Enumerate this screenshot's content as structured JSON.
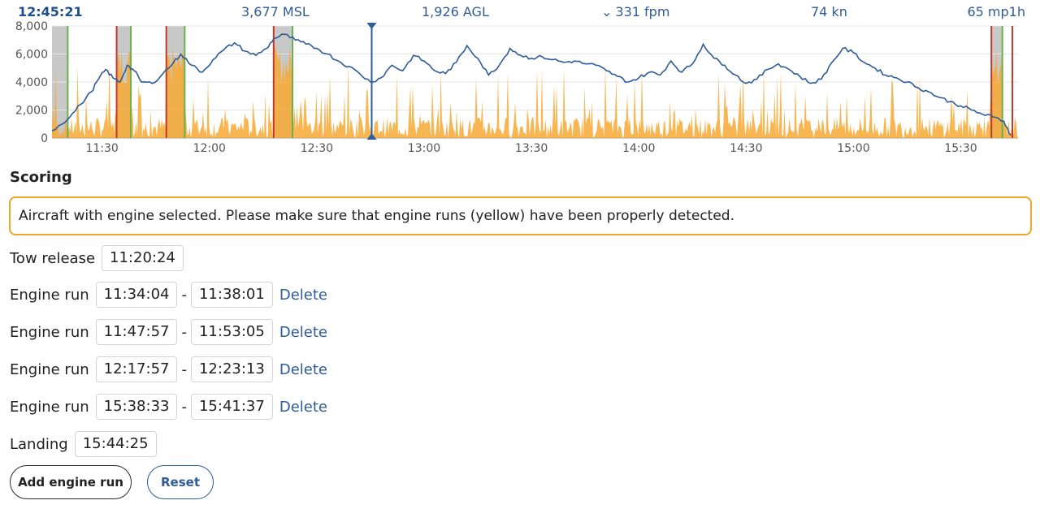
{
  "header": {
    "time": "12:45:21",
    "msl": "3,677 MSL",
    "agl": "1,926 AGL",
    "vario": "331 fpm",
    "vario_icon": "chevron-down-icon",
    "speed": "74 kn",
    "ld": "65 mp1h"
  },
  "chart_data": {
    "type": "area",
    "y_ticks": [
      "8,000",
      "6,000",
      "4,000",
      "2,000",
      "0"
    ],
    "x_ticks": [
      "11:30",
      "12:00",
      "12:30",
      "13:00",
      "13:30",
      "14:00",
      "14:30",
      "15:00",
      "15:30"
    ],
    "ylim": [
      0,
      8000
    ],
    "xlim": [
      "11:16",
      "15:46"
    ],
    "cursor_time": "12:45:21",
    "colors": {
      "altitude": "#2e5b9a",
      "engine": "#f7a935",
      "grey": "#c8c8c8",
      "green": "#6ab04c",
      "red": "#c0392b"
    },
    "altitude": {
      "x": [
        "11:16",
        "11:18",
        "11:21",
        "11:24",
        "11:27",
        "11:29",
        "11:31",
        "11:33",
        "11:35",
        "11:37",
        "11:39",
        "11:41",
        "11:44",
        "11:47",
        "11:50",
        "11:52",
        "11:55",
        "11:58",
        "12:01",
        "12:04",
        "12:07",
        "12:10",
        "12:13",
        "12:16",
        "12:18",
        "12:21",
        "12:24",
        "12:27",
        "12:30",
        "12:33",
        "12:36",
        "12:39",
        "12:42",
        "12:45",
        "12:48",
        "12:51",
        "12:54",
        "12:57",
        "13:00",
        "13:03",
        "13:06",
        "13:09",
        "13:12",
        "13:15",
        "13:18",
        "13:21",
        "13:24",
        "13:27",
        "13:30",
        "13:33",
        "13:36",
        "13:39",
        "13:42",
        "13:45",
        "13:48",
        "13:51",
        "13:54",
        "13:57",
        "14:00",
        "14:03",
        "14:06",
        "14:09",
        "14:12",
        "14:15",
        "14:18",
        "14:21",
        "14:24",
        "14:27",
        "14:30",
        "14:33",
        "14:36",
        "14:39",
        "14:42",
        "14:45",
        "14:48",
        "14:51",
        "14:54",
        "14:57",
        "15:00",
        "15:03",
        "15:06",
        "15:09",
        "15:12",
        "15:15",
        "15:18",
        "15:21",
        "15:24",
        "15:27",
        "15:30",
        "15:33",
        "15:36",
        "15:39",
        "15:42",
        "15:44"
      ],
      "y": [
        500,
        900,
        1500,
        2400,
        3300,
        4200,
        4900,
        4300,
        4000,
        5200,
        4800,
        4000,
        3900,
        4600,
        5400,
        6000,
        5200,
        4700,
        5600,
        6300,
        6800,
        6200,
        5900,
        6400,
        7100,
        7400,
        7000,
        6700,
        6400,
        6000,
        5500,
        5100,
        4600,
        4000,
        4300,
        5200,
        4800,
        5900,
        5500,
        4800,
        4600,
        5400,
        6600,
        5700,
        4500,
        5200,
        6400,
        5900,
        5700,
        5800,
        5600,
        5400,
        5500,
        5300,
        5200,
        4800,
        4400,
        4000,
        4300,
        4700,
        4500,
        5500,
        4700,
        5300,
        6700,
        5700,
        5200,
        4500,
        3900,
        4200,
        4900,
        5300,
        4900,
        4400,
        3900,
        4200,
        5400,
        6400,
        6100,
        5400,
        5000,
        4500,
        4300,
        4000,
        3600,
        3300,
        2900,
        2600,
        2300,
        2000,
        1700,
        1500,
        1200,
        200
      ]
    },
    "engine_runs": [
      [
        "11:34:04",
        "11:38:01"
      ],
      [
        "11:47:57",
        "11:53:05"
      ],
      [
        "12:17:57",
        "12:23:13"
      ],
      [
        "15:38:33",
        "15:41:37"
      ]
    ],
    "tow_release": "11:20:24",
    "landing": "15:44:25"
  },
  "scoring": {
    "title": "Scoring",
    "alert": "Aircraft with engine selected. Please make sure that engine runs (yellow) have been properly detected.",
    "tow_release": {
      "label": "Tow release",
      "value": "11:20:24"
    },
    "engine_runs": [
      {
        "label": "Engine run",
        "start": "11:34:04",
        "end": "11:38:01",
        "delete": "Delete"
      },
      {
        "label": "Engine run",
        "start": "11:47:57",
        "end": "11:53:05",
        "delete": "Delete"
      },
      {
        "label": "Engine run",
        "start": "12:17:57",
        "end": "12:23:13",
        "delete": "Delete"
      },
      {
        "label": "Engine run",
        "start": "15:38:33",
        "end": "15:41:37",
        "delete": "Delete"
      }
    ],
    "landing": {
      "label": "Landing",
      "value": "15:44:25"
    },
    "separator": "-",
    "add_button": "Add engine run",
    "reset_button": "Reset"
  }
}
